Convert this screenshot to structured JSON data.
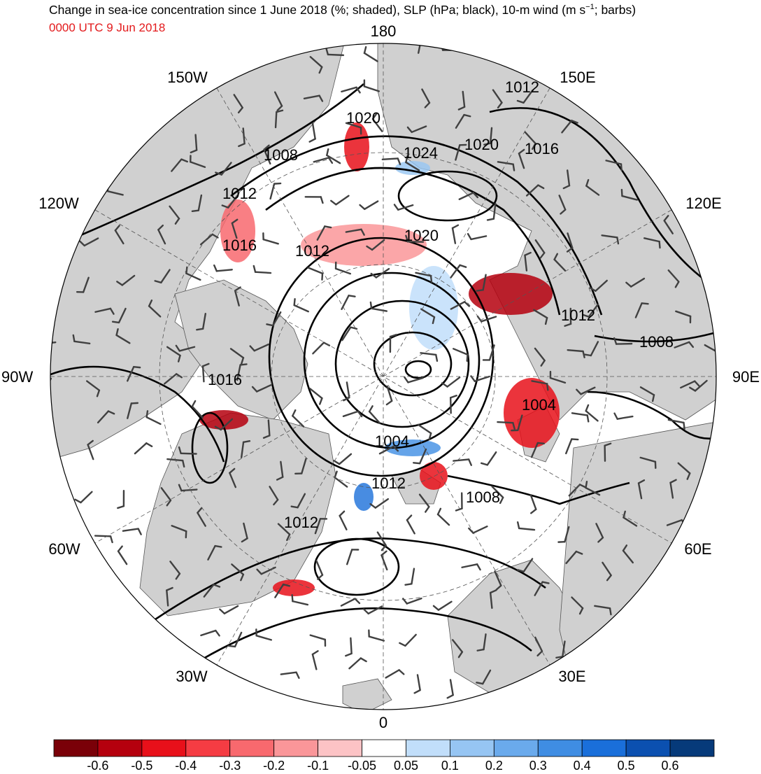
{
  "title": {
    "main_prefix": "Change in sea-ice concentration since 1 June 2018 (%; shaded), SLP (hPa; black), 10-m wind (m s",
    "superscript": "−1",
    "main_suffix": "; barbs)",
    "valid_time": "0000 UTC 9 Jun 2018",
    "valid_time_color": "#e31a1c"
  },
  "longitude_labels": {
    "lon_180": "180",
    "lon_150w": "150W",
    "lon_150e": "150E",
    "lon_120w": "120W",
    "lon_120e": "120E",
    "lon_90w": "90W",
    "lon_90e": "90E",
    "lon_60w": "60W",
    "lon_60e": "60E",
    "lon_30w": "30W",
    "lon_30e": "30E",
    "lon_0": "0"
  },
  "slp_contour_labels": [
    {
      "id": "c1",
      "text": "1020"
    },
    {
      "id": "c2",
      "text": "1012"
    },
    {
      "id": "c3",
      "text": "1008"
    },
    {
      "id": "c4",
      "text": "1024"
    },
    {
      "id": "c5",
      "text": "1020"
    },
    {
      "id": "c6",
      "text": "1016"
    },
    {
      "id": "c7",
      "text": "1012"
    },
    {
      "id": "c8",
      "text": "1020"
    },
    {
      "id": "c9",
      "text": "1016"
    },
    {
      "id": "c10",
      "text": "1012"
    },
    {
      "id": "c11",
      "text": "1012"
    },
    {
      "id": "c12",
      "text": "1008"
    },
    {
      "id": "c13",
      "text": "1016"
    },
    {
      "id": "c14",
      "text": "1004"
    },
    {
      "id": "c15",
      "text": "1004"
    },
    {
      "id": "c16",
      "text": "1012"
    },
    {
      "id": "c17",
      "text": "1008"
    },
    {
      "id": "c18",
      "text": "1012"
    }
  ],
  "colorbar": {
    "colors": [
      "#7a0008",
      "#b5000e",
      "#e8101a",
      "#f53c43",
      "#f8696e",
      "#fa9699",
      "#fcc3c5",
      "#ffffff",
      "#c1defa",
      "#96c5f3",
      "#6aaaec",
      "#3f8de3",
      "#1a6fda",
      "#0b50b0",
      "#063a7a"
    ],
    "labels": [
      "-0.6",
      "-0.5",
      "-0.4",
      "-0.3",
      "-0.2",
      "-0.1",
      "-0.05",
      "0.05",
      "0.1",
      "0.2",
      "0.3",
      "0.4",
      "0.5",
      "0.6"
    ]
  },
  "colors": {
    "land": "#d0d0d0",
    "ocean": "#ffffff",
    "contour": "#000000",
    "barb": "#404040",
    "ice_loss": "#e8101a",
    "ice_gain": "#3f8de3"
  }
}
